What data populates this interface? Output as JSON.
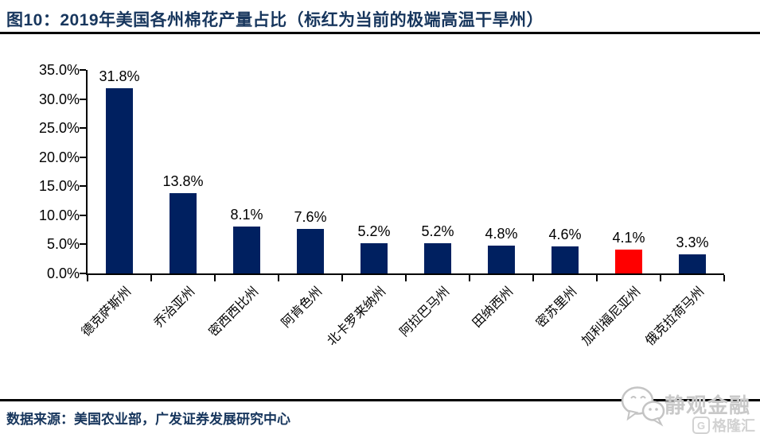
{
  "header": {
    "title": "图10：2019年美国各州棉花产量占比（标红为当前的极端高温干旱州）"
  },
  "footer": {
    "source": "数据来源：美国农业部，广发证券发展研究中心"
  },
  "watermark": {
    "brand": "静观金融",
    "logo_letter": "G",
    "logo_text": "格隆汇"
  },
  "colors": {
    "bar": "#002060",
    "highlight_bar": "#FF0000",
    "title_text": "#17365D",
    "source_text": "#17365D",
    "axis": "#000000",
    "watermark_gray": "#C9C9C9"
  },
  "chart_data": {
    "type": "bar",
    "title": "2019年美国各州棉花产量占比",
    "categories": [
      "德克萨斯州",
      "乔治亚州",
      "密西西比州",
      "阿肯色州",
      "北卡罗来纳州",
      "阿拉巴马州",
      "田纳西州",
      "密苏里州",
      "加利福尼亚州",
      "俄克拉荷马州"
    ],
    "values": [
      31.8,
      13.8,
      8.1,
      7.6,
      5.2,
      5.2,
      4.8,
      4.6,
      4.1,
      3.3
    ],
    "data_labels": [
      "31.8%",
      "13.8%",
      "8.1%",
      "7.6%",
      "5.2%",
      "5.2%",
      "4.8%",
      "4.6%",
      "4.1%",
      "3.3%"
    ],
    "highlight_index": 8,
    "xlabel": "",
    "ylabel": "",
    "ylim": [
      0,
      35
    ],
    "y_ticks": [
      "0.0%",
      "5.0%",
      "10.0%",
      "15.0%",
      "20.0%",
      "25.0%",
      "30.0%",
      "35.0%"
    ],
    "grid": false,
    "legend": "none"
  }
}
